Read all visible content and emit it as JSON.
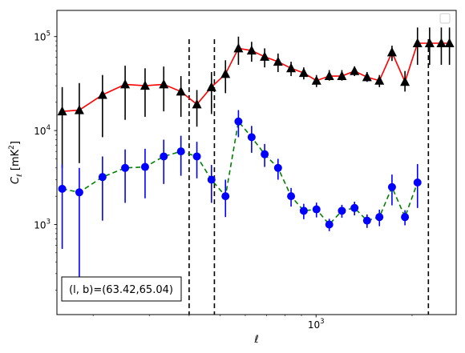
{
  "chart_data": {
    "type": "line",
    "xlabel": "ℓ",
    "ylabel_main": "C",
    "ylabel_sub": "ℓ",
    "ylabel_unit": "[mK",
    "ylabel_unit_sup": "2",
    "ylabel_unit_close": "]",
    "xscale": "log",
    "yscale": "log",
    "xlim": [
      154,
      2750
    ],
    "ylim": [
      110,
      190000
    ],
    "x_ticks": [
      {
        "value": 1000,
        "base": "10",
        "exp": "3"
      }
    ],
    "y_ticks": [
      {
        "value": 1000,
        "base": "10",
        "exp": "3"
      },
      {
        "value": 10000,
        "base": "10",
        "exp": "4"
      },
      {
        "value": 100000,
        "base": "10",
        "exp": "5"
      }
    ],
    "vlines": [
      400,
      480,
      2250
    ],
    "legend_position": "top-right",
    "annotation": "(l, b)=(63.42,65.04)",
    "series": [
      {
        "color": "#ff0000",
        "linestyle": "solid",
        "marker": "triangle",
        "marker_color": "#000000",
        "errbar_color": "#000000",
        "x": [
          160,
          181,
          214,
          252,
          291,
          333,
          377,
          423,
          470,
          520,
          571,
          628,
          690,
          760,
          835,
          915,
          1003,
          1100,
          1205,
          1320,
          1445,
          1580,
          1730,
          1900,
          2080,
          2270,
          2470,
          2620
        ],
        "y": [
          16000,
          16500,
          24000,
          31000,
          30000,
          31000,
          26000,
          19000,
          29000,
          40000,
          75000,
          71000,
          61000,
          54000,
          46000,
          41000,
          34000,
          38000,
          38000,
          43000,
          37000,
          34000,
          68000,
          33000,
          85000,
          85000,
          85000,
          85000
        ],
        "err_lo": [
          12000,
          12000,
          15500,
          18000,
          16000,
          15000,
          12000,
          8000,
          14000,
          15000,
          25000,
          17000,
          14000,
          12000,
          8000,
          6000,
          5000,
          4000,
          4000,
          5000,
          4000,
          5000,
          13000,
          7000,
          35000,
          35000,
          35000,
          35000
        ],
        "err_hi": [
          13000,
          15500,
          15000,
          18000,
          16000,
          17000,
          12000,
          8000,
          13000,
          16000,
          25000,
          17000,
          14000,
          12000,
          8000,
          6000,
          5000,
          6000,
          6000,
          5000,
          5000,
          5000,
          12000,
          10000,
          40000,
          40000,
          40000,
          40000
        ]
      },
      {
        "color": "#008000",
        "linestyle": "dashed",
        "marker": "circle",
        "marker_color": "#0000ff",
        "errbar_color": "#0000ff",
        "x": [
          160,
          181,
          214,
          252,
          291,
          333,
          377,
          423,
          470,
          520,
          571,
          628,
          690,
          760,
          835,
          915,
          1003,
          1100,
          1205,
          1320,
          1445,
          1580,
          1730,
          1900,
          2080
        ],
        "y": [
          2400,
          2200,
          3200,
          4000,
          4100,
          5300,
          6000,
          5300,
          3000,
          2000,
          12500,
          8500,
          5600,
          4000,
          2000,
          1400,
          1450,
          1000,
          1400,
          1500,
          1100,
          1200,
          2500,
          1200,
          2800
        ],
        "err_lo": [
          1850,
          2000,
          2100,
          2300,
          2200,
          2600,
          2700,
          2200,
          1300,
          800,
          4000,
          2700,
          1500,
          1000,
          450,
          260,
          260,
          150,
          220,
          250,
          180,
          240,
          900,
          220,
          1300
        ],
        "err_hi": [
          1950,
          1800,
          2100,
          2300,
          2300,
          2700,
          2800,
          2300,
          1300,
          1000,
          4000,
          2700,
          1600,
          1000,
          450,
          260,
          260,
          150,
          220,
          250,
          180,
          240,
          900,
          220,
          1600
        ]
      }
    ]
  }
}
